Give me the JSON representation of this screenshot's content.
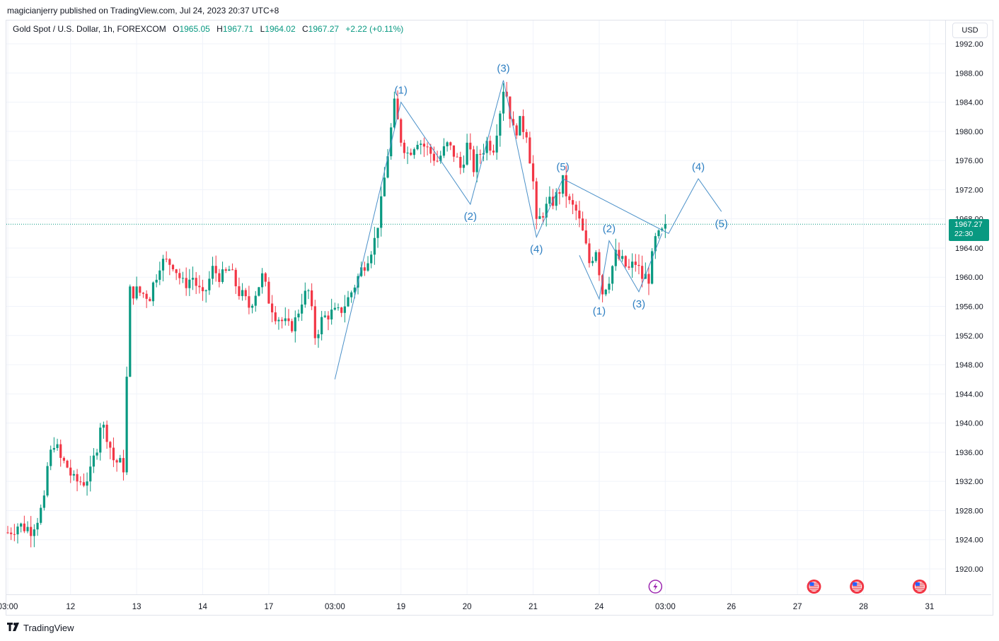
{
  "header": {
    "publisher_line": "magicianjerry published on TradingView.com, Jul 24, 2023 20:37 UTC+8"
  },
  "legend": {
    "symbol": "Gold Spot / U.S. Dollar, 1h, FOREXCOM",
    "o_label": "O",
    "o_value": "1965.05",
    "h_label": "H",
    "h_value": "1967.71",
    "l_label": "L",
    "l_value": "1964.02",
    "c_label": "C",
    "c_value": "1967.27",
    "change": "+2.22 (+0.11%)"
  },
  "currency_button": "USD",
  "last_price": {
    "value": "1967.27",
    "countdown": "22:30"
  },
  "footer": {
    "brand": "TradingView"
  },
  "colors": {
    "up": "#089981",
    "down": "#f23645",
    "wave": "#2962ff",
    "wave_line": "#4a90c8",
    "wave_label": "#2e7fc2",
    "grid": "#f0f3fa",
    "axis_text": "#131722"
  },
  "icons": [
    "tradingview-logo-icon",
    "lightning-event-icon",
    "us-flag-event-icon"
  ],
  "chart_data": {
    "type": "candlestick",
    "title": "Gold Spot / U.S. Dollar, 1h, FOREXCOM",
    "y_ticks": [
      "1920.00",
      "1924.00",
      "1928.00",
      "1932.00",
      "1936.00",
      "1940.00",
      "1944.00",
      "1948.00",
      "1952.00",
      "1956.00",
      "1960.00",
      "1964.00",
      "1968.00",
      "1972.00",
      "1976.00",
      "1980.00",
      "1984.00",
      "1988.00",
      "1992.00"
    ],
    "ylim": [
      1918,
      1993.2
    ],
    "x_ticks": [
      {
        "label": "03:00",
        "i": 0
      },
      {
        "label": "12",
        "i": 19
      },
      {
        "label": "13",
        "i": 39
      },
      {
        "label": "14",
        "i": 59
      },
      {
        "label": "17",
        "i": 79
      },
      {
        "label": "03:00",
        "i": 99
      },
      {
        "label": "19",
        "i": 119
      },
      {
        "label": "20",
        "i": 139
      },
      {
        "label": "21",
        "i": 159
      },
      {
        "label": "24",
        "i": 179
      },
      {
        "label": "03:00",
        "i": 199
      },
      {
        "label": "26",
        "i": 219
      },
      {
        "label": "27",
        "i": 239
      },
      {
        "label": "28",
        "i": 259
      },
      {
        "label": "31",
        "i": 279
      }
    ],
    "anchors": [
      [
        0,
        1925
      ],
      [
        3,
        1926
      ],
      [
        7,
        1925.5
      ],
      [
        9,
        1927
      ],
      [
        11,
        1929
      ],
      [
        12,
        1934
      ],
      [
        14,
        1937.5
      ],
      [
        16,
        1935
      ],
      [
        18,
        1934
      ],
      [
        20,
        1932
      ],
      [
        23,
        1932
      ],
      [
        25,
        1933
      ],
      [
        27,
        1937
      ],
      [
        28,
        1940
      ],
      [
        30,
        1938.5
      ],
      [
        32,
        1935
      ],
      [
        35,
        1934
      ],
      [
        37,
        1958
      ],
      [
        39,
        1958
      ],
      [
        43,
        1957.5
      ],
      [
        46,
        1962
      ],
      [
        50,
        1962
      ],
      [
        53,
        1959
      ],
      [
        56,
        1960
      ],
      [
        59,
        1957
      ],
      [
        62,
        1961
      ],
      [
        65,
        1960
      ],
      [
        67,
        1961
      ],
      [
        70,
        1958
      ],
      [
        73,
        1956
      ],
      [
        75,
        1958
      ],
      [
        77,
        1960
      ],
      [
        79,
        1957
      ],
      [
        81,
        1955
      ],
      [
        83,
        1954
      ],
      [
        85,
        1953
      ],
      [
        87,
        1954
      ],
      [
        89,
        1957
      ],
      [
        91,
        1958
      ],
      [
        93,
        1952
      ],
      [
        95,
        1954
      ],
      [
        97,
        1955
      ],
      [
        100,
        1955
      ],
      [
        103,
        1957
      ],
      [
        105,
        1959
      ],
      [
        108,
        1962
      ],
      [
        111,
        1965
      ],
      [
        113,
        1970
      ],
      [
        115,
        1977
      ],
      [
        117,
        1983.5
      ],
      [
        119,
        1979
      ],
      [
        121,
        1977
      ],
      [
        124,
        1979
      ],
      [
        126,
        1978
      ],
      [
        128,
        1977
      ],
      [
        130,
        1976
      ],
      [
        133,
        1978
      ],
      [
        135,
        1977
      ],
      [
        137,
        1975
      ],
      [
        139,
        1978
      ],
      [
        141,
        1975
      ],
      [
        143,
        1977
      ],
      [
        145,
        1978.5
      ],
      [
        147,
        1978
      ],
      [
        149,
        1983
      ],
      [
        150,
        1986
      ],
      [
        151,
        1985
      ],
      [
        153,
        1980
      ],
      [
        155,
        1981
      ],
      [
        157,
        1980
      ],
      [
        159,
        1973
      ],
      [
        160,
        1967
      ],
      [
        162,
        1969
      ],
      [
        164,
        1970
      ],
      [
        166,
        1971
      ],
      [
        168,
        1973
      ],
      [
        170,
        1970
      ],
      [
        172,
        1969
      ],
      [
        174,
        1966
      ],
      [
        176,
        1962
      ],
      [
        178,
        1964
      ],
      [
        180,
        1958
      ],
      [
        182,
        1960
      ],
      [
        184,
        1963
      ],
      [
        186,
        1962
      ],
      [
        188,
        1961
      ],
      [
        190,
        1962
      ],
      [
        192,
        1960
      ],
      [
        194,
        1960
      ],
      [
        196,
        1965
      ],
      [
        198,
        1966
      ],
      [
        199,
        1967.27
      ]
    ],
    "candles_count": 200,
    "last_close": 1967.27,
    "wave_path_major": [
      [
        99,
        1946
      ],
      [
        119,
        1984
      ],
      [
        140,
        1970
      ],
      [
        150,
        1987
      ],
      [
        160,
        1965.5
      ],
      [
        168,
        1973.5
      ],
      [
        200,
        1966
      ],
      [
        209,
        1973.5
      ],
      [
        216,
        1969
      ]
    ],
    "wave_path_minor": [
      [
        173,
        1963
      ],
      [
        179,
        1957
      ],
      [
        182,
        1965
      ],
      [
        191,
        1958
      ],
      [
        198,
        1966
      ]
    ],
    "wave_labels": [
      {
        "text": "(1)",
        "i": 119,
        "y": 1984,
        "pos": "above"
      },
      {
        "text": "(2)",
        "i": 140,
        "y": 1970,
        "pos": "below"
      },
      {
        "text": "(3)",
        "i": 150,
        "y": 1987,
        "pos": "above"
      },
      {
        "text": "(4)",
        "i": 160,
        "y": 1965.5,
        "pos": "below"
      },
      {
        "text": "(5)",
        "i": 168,
        "y": 1973.5,
        "pos": "above"
      },
      {
        "text": "(1)",
        "i": 179,
        "y": 1957,
        "pos": "below"
      },
      {
        "text": "(2)",
        "i": 182,
        "y": 1965,
        "pos": "above"
      },
      {
        "text": "(3)",
        "i": 191,
        "y": 1958,
        "pos": "below"
      },
      {
        "text": "(4)",
        "i": 209,
        "y": 1973.5,
        "pos": "above"
      },
      {
        "text": "(5)",
        "i": 216,
        "y": 1969,
        "pos": "below"
      }
    ],
    "events": [
      {
        "type": "lightning",
        "i": 196
      },
      {
        "type": "us-flag",
        "i": 244
      },
      {
        "type": "us-flag",
        "i": 257
      },
      {
        "type": "us-flag",
        "i": 276
      }
    ]
  }
}
